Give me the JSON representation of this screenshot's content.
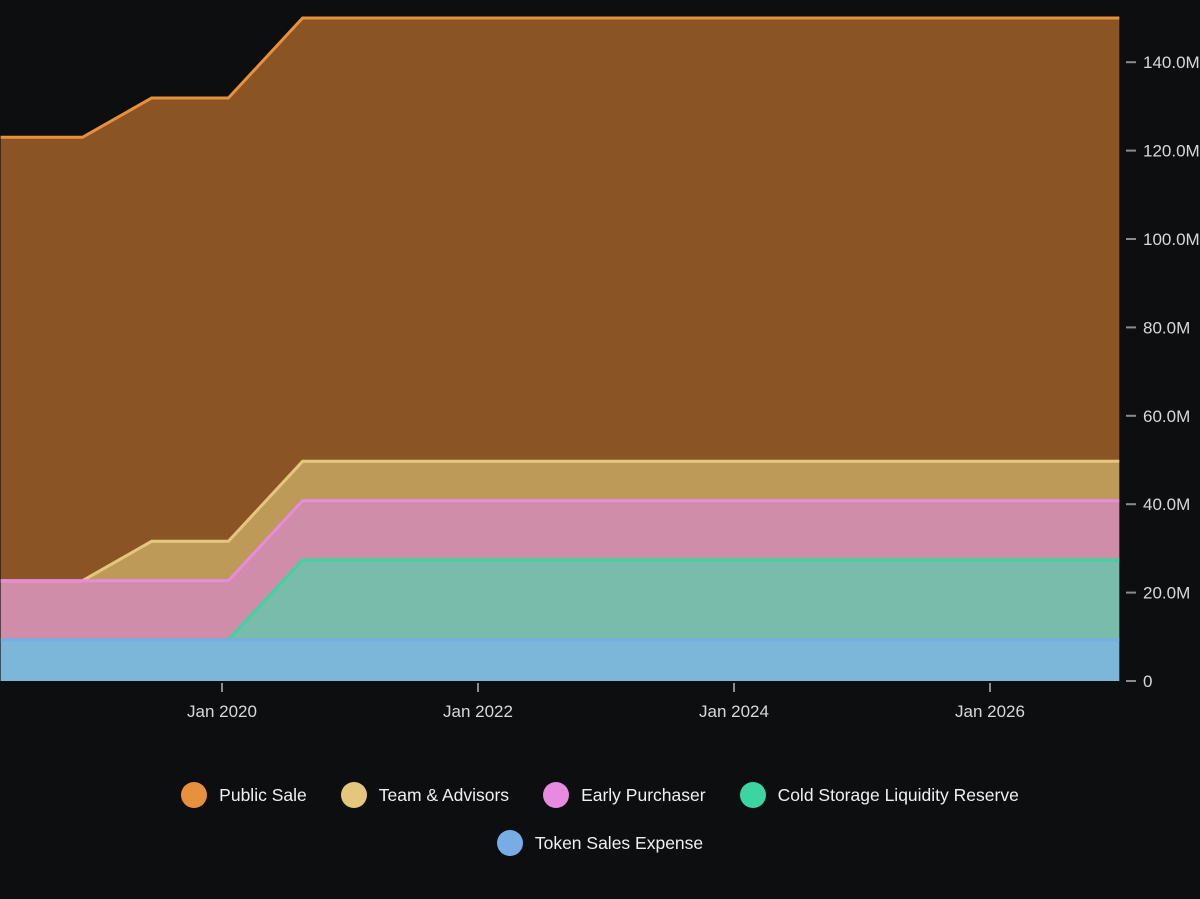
{
  "chart_data": {
    "type": "area",
    "stacked": true,
    "title": "",
    "x_years": [
      2018.27,
      2018.91,
      2019.45,
      2020.05,
      2020.63,
      2027.01
    ],
    "series": [
      {
        "name": "Token Sales Expense",
        "values": [
          9.3,
          9.3,
          9.3,
          9.3,
          9.3,
          9.3
        ],
        "line": "#77ace4",
        "fill": "#7cb7d9"
      },
      {
        "name": "Cold Storage Liquidity Reserve",
        "values": [
          0,
          0,
          0,
          0,
          18.1,
          18.1
        ],
        "line": "#3cd4a0",
        "fill": "#7abcac"
      },
      {
        "name": "Early Purchaser",
        "values": [
          13.4,
          13.4,
          13.4,
          13.4,
          13.4,
          13.4
        ],
        "line": "#e88ae0",
        "fill": "#cf8da9"
      },
      {
        "name": "Team & Advisors",
        "values": [
          0,
          0,
          8.9,
          8.9,
          8.9,
          8.9
        ],
        "line": "#e4c77c",
        "fill": "#bd9a58"
      },
      {
        "name": "Public Sale",
        "values": [
          100.3,
          100.3,
          100.3,
          100.3,
          100.3,
          100.3
        ],
        "line": "#e8913c",
        "fill": "#8a5424"
      }
    ],
    "x_ticks": [
      {
        "label": "Jan 2020",
        "year": 2020
      },
      {
        "label": "Jan 2022",
        "year": 2022
      },
      {
        "label": "Jan 2024",
        "year": 2024
      },
      {
        "label": "Jan 2026",
        "year": 2026
      }
    ],
    "y_ticks": [
      {
        "label": "0",
        "value": 0
      },
      {
        "label": "20.0M",
        "value": 20
      },
      {
        "label": "40.0M",
        "value": 40
      },
      {
        "label": "60.0M",
        "value": 60
      },
      {
        "label": "80.0M",
        "value": 80
      },
      {
        "label": "100.0M",
        "value": 100
      },
      {
        "label": "120.0M",
        "value": 120
      },
      {
        "label": "140.0M",
        "value": 140
      }
    ],
    "ylim": [
      0,
      150.8
    ],
    "legend_position": "bottom",
    "grid": false,
    "background": "#0d0e10",
    "axis_text_color": "#d6d8da",
    "tick_color": "#8c8c8c"
  }
}
